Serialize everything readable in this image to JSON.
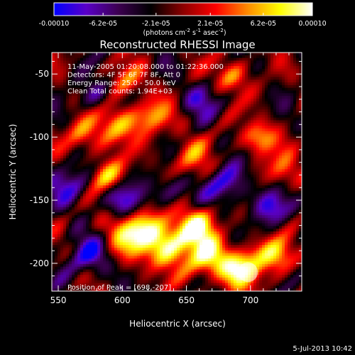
{
  "chart_data": {
    "type": "heatmap",
    "title": "Reconstructed RHESSI Image",
    "xlabel": "Heliocentric X (arcsec)",
    "ylabel": "Heliocentric Y (arcsec)",
    "xlim": [
      545,
      740
    ],
    "ylim": [
      -222,
      -33
    ],
    "x_ticks": [
      "550",
      "600",
      "650",
      "700"
    ],
    "x_tick_values": [
      550,
      600,
      650,
      700
    ],
    "y_ticks": [
      "-50",
      "-100",
      "-150",
      "-200"
    ],
    "y_tick_values": [
      -50,
      -100,
      -150,
      -200
    ],
    "colorbar": {
      "min": -0.0001,
      "max": 0.0001,
      "tick_labels": [
        "-0.00010",
        "-6.2e-05",
        "-2.1e-05",
        "2.1e-05",
        "6.2e-05",
        "0.00010"
      ],
      "tick_values": [
        -0.0001,
        -6.2e-05,
        -2.1e-05,
        2.1e-05,
        6.2e-05,
        0.0001
      ],
      "unit_label": "(photons cm-2 s-1 asec-2)",
      "colors": [
        "#0000ff",
        "#5a00c8",
        "#3c0050",
        "#000000",
        "#8c0000",
        "#ff0000",
        "#ff8c00",
        "#ffff00",
        "#ffffff"
      ]
    },
    "annotations": [
      "11-May-2005 01:20:08.000 to 01:22:36.000",
      "Detectors: 4F 5F 6F 7F 8F, Att 0",
      "Energy Range: 25.0 - 50.0 keV",
      "Clean     Total counts: 1.94E+03"
    ],
    "peak_label": "Position of Peak = [698,-207]",
    "peak_position": [
      698,
      -207
    ],
    "footer_date": "5-Jul-2013 10:42",
    "grid": false
  }
}
